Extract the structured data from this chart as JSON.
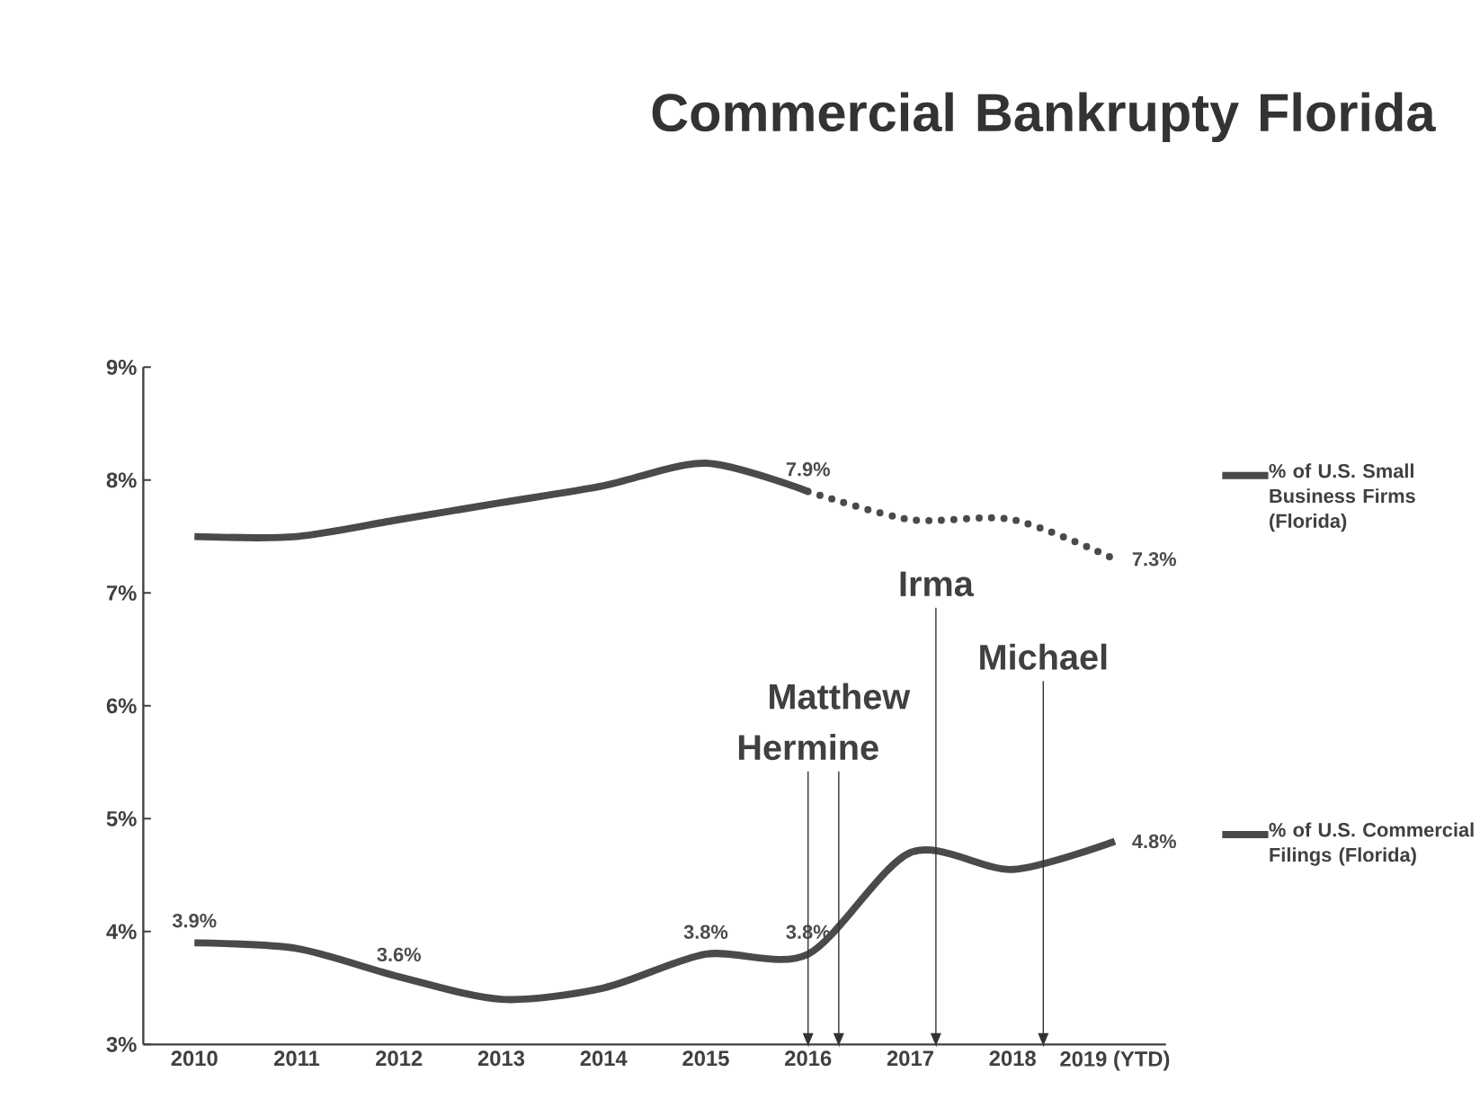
{
  "chart_data": {
    "type": "line",
    "title": "Commercial Bankrupty Florida",
    "x": [
      2010,
      2011,
      2012,
      2013,
      2014,
      2015,
      2016,
      2017,
      2018,
      2019
    ],
    "xlim": [
      2009.5,
      2019.5
    ],
    "xticks": [
      2010,
      2011,
      2012,
      2013,
      2014,
      2015,
      2016,
      2017,
      {
        "value": 2018,
        "label": "2018"
      },
      {
        "value": 2019,
        "label": "2019 (YTD)"
      }
    ],
    "ylim": [
      3,
      9
    ],
    "yticks": [
      {
        "value": 3,
        "label": "3%"
      },
      {
        "value": 4,
        "label": "4%"
      },
      {
        "value": 5,
        "label": "5%"
      },
      {
        "value": 6,
        "label": "6%"
      },
      {
        "value": 7,
        "label": "7%"
      },
      {
        "value": 8,
        "label": "8%"
      },
      {
        "value": 9,
        "label": "9%"
      }
    ],
    "legend": "right",
    "series": [
      {
        "name": "% of U.S. Small Business Firms (Florida)",
        "color": "#4a4a4a",
        "line_style": "solid",
        "values": [
          7.5,
          7.5,
          7.65,
          7.8,
          7.95,
          8.15,
          7.9,
          null,
          null,
          null
        ],
        "value_labels": [
          null,
          null,
          null,
          null,
          null,
          null,
          "7.9%",
          null,
          null,
          null
        ]
      },
      {
        "color": "#4a4a4a",
        "line_style": "dotted",
        "values": [
          null,
          null,
          null,
          null,
          null,
          null,
          7.9,
          7.65,
          7.65,
          7.3
        ],
        "value_labels": [
          null,
          null,
          null,
          null,
          null,
          null,
          null,
          null,
          null,
          "7.3%"
        ]
      },
      {
        "name": "% of U.S. Commercial Filings (Florida)",
        "color": "#4a4a4a",
        "line_style": "solid",
        "values": [
          3.9,
          3.85,
          3.6,
          3.4,
          3.5,
          3.8,
          3.8,
          4.7,
          4.55,
          4.8
        ],
        "value_labels": [
          "3.9%",
          null,
          "3.6%",
          null,
          null,
          "3.8%",
          "3.8%",
          null,
          null,
          "4.8%"
        ]
      }
    ],
    "ref_lines": [
      {
        "axis": "x",
        "value": 2016.0,
        "label": "Hermine"
      },
      {
        "axis": "x",
        "value": 2016.3,
        "label": "Matthew"
      },
      {
        "axis": "x",
        "value": 2017.25,
        "label": "Irma"
      },
      {
        "axis": "x",
        "value": 2018.3,
        "label": "Michael"
      }
    ]
  }
}
